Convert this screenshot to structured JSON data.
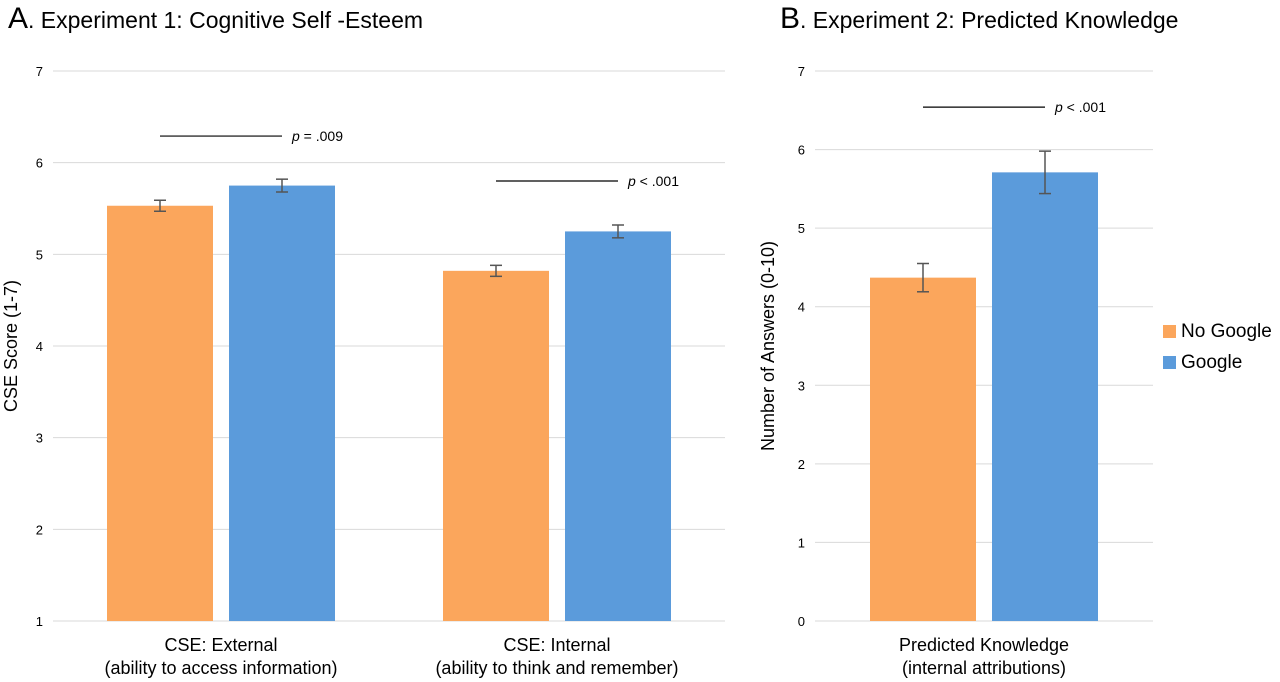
{
  "chart_data": [
    {
      "type": "bar",
      "panel_letter": "A",
      "title": ". Experiment 1: Cognitive Self -Esteem",
      "ylabel": "CSE Score (1-7)",
      "xlabel": "",
      "ylim": [
        1,
        7
      ],
      "yticks": [
        "1",
        "2",
        "3",
        "4",
        "5",
        "6",
        "7"
      ],
      "grid": true,
      "categories": [
        [
          "CSE: External",
          "(ability to access information)"
        ],
        [
          "CSE: Internal",
          "(ability to think and remember)"
        ]
      ],
      "series": [
        {
          "name": "No Google",
          "values": [
            5.53,
            4.82
          ],
          "error": [
            0.06,
            0.06
          ]
        },
        {
          "name": "Google",
          "values": [
            5.75,
            5.25
          ],
          "error": [
            0.07,
            0.07
          ]
        }
      ],
      "annotations": [
        {
          "p_symbol": "p",
          "text": " = .009",
          "category_index": 0,
          "y": 6.29
        },
        {
          "p_symbol": "p",
          "text": " < .001",
          "category_index": 1,
          "y": 5.8
        }
      ]
    },
    {
      "type": "bar",
      "panel_letter": "B",
      "title": ". Experiment 2: Predicted Knowledge",
      "ylabel": "Number of Answers (0-10)",
      "xlabel": "",
      "ylim": [
        0,
        7
      ],
      "yticks": [
        "0",
        "1",
        "2",
        "3",
        "4",
        "5",
        "6",
        "7"
      ],
      "grid": true,
      "categories": [
        [
          "Predicted Knowledge",
          "(internal attributions)"
        ]
      ],
      "series": [
        {
          "name": "No Google",
          "values": [
            4.37
          ],
          "error": [
            0.18
          ]
        },
        {
          "name": "Google",
          "values": [
            5.71
          ],
          "error": [
            0.27
          ]
        }
      ],
      "annotations": [
        {
          "p_symbol": "p",
          "text": " < .001",
          "category_index": 0,
          "y": 6.54
        }
      ]
    }
  ],
  "legend": {
    "placement": "right",
    "items": [
      {
        "label": "No Google",
        "color": "#FBA65C"
      },
      {
        "label": "Google",
        "color": "#5B9BDB"
      }
    ]
  },
  "colors": {
    "no_google": "#FBA65C",
    "google": "#5B9BDB",
    "grid": "#d9d9d9",
    "error_bar": "#555555"
  }
}
